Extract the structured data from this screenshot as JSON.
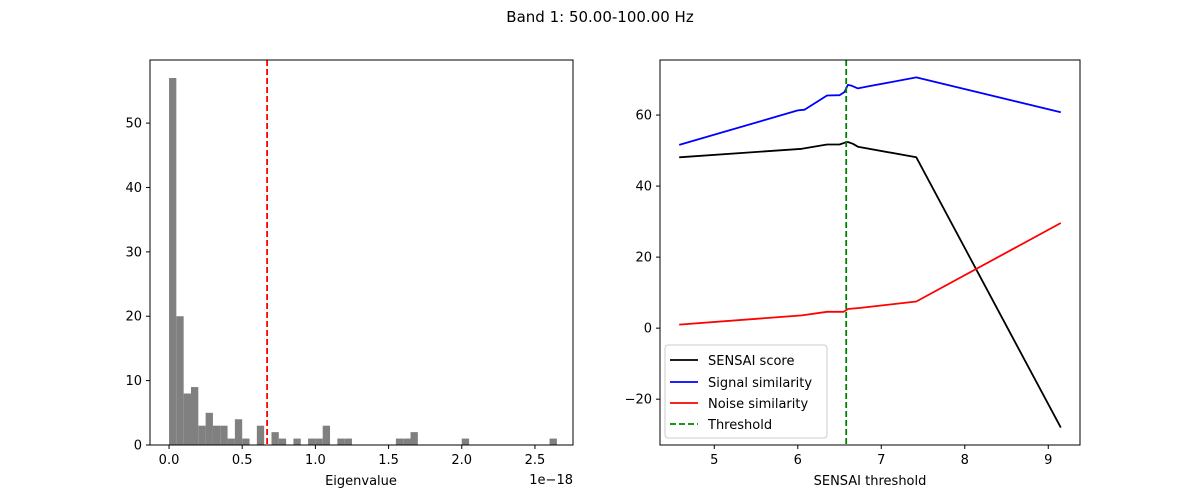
{
  "title": "Band 1: 50.00-100.00 Hz",
  "chart_data": [
    {
      "type": "bar",
      "subtype": "histogram",
      "xlabel": "Eigenvalue",
      "ylabel": "",
      "x_offset_label": "1e−18",
      "xlim": [
        -0.13,
        2.76
      ],
      "ylim": [
        0,
        59.8
      ],
      "xticks": [
        0.0,
        0.5,
        1.0,
        1.5,
        2.0,
        2.5
      ],
      "xtick_labels": [
        "0.0",
        "0.5",
        "1.0",
        "1.5",
        "2.0",
        "2.5"
      ],
      "yticks": [
        0,
        10,
        20,
        30,
        40,
        50
      ],
      "ytick_labels": [
        "0",
        "10",
        "20",
        "30",
        "40",
        "50"
      ],
      "bar_color": "#808080",
      "bins": {
        "edges": [
          0.0,
          0.05,
          0.1,
          0.15,
          0.2,
          0.25,
          0.3,
          0.35,
          0.4,
          0.45,
          0.5,
          0.55,
          0.6,
          0.65,
          0.7,
          0.75,
          0.8,
          0.85,
          0.9,
          0.95,
          1.0,
          1.05,
          1.1,
          1.15,
          1.2,
          1.25,
          1.3,
          1.35,
          1.4,
          1.45,
          1.5,
          1.55,
          1.6,
          1.65,
          1.7,
          1.75,
          1.8,
          1.85,
          1.9,
          1.95,
          2.0,
          2.05,
          2.1,
          2.15,
          2.2,
          2.25,
          2.3,
          2.35,
          2.4,
          2.45,
          2.5,
          2.55,
          2.6,
          2.65
        ],
        "counts": [
          57,
          20,
          8,
          9,
          3,
          5,
          3,
          3,
          1,
          4,
          1,
          0,
          3,
          0,
          2,
          1,
          0,
          1,
          0,
          1,
          1,
          3,
          0,
          1,
          1,
          0,
          0,
          0,
          0,
          0,
          0,
          1,
          1,
          2,
          0,
          0,
          0,
          0,
          0,
          0,
          1,
          0,
          0,
          0,
          0,
          0,
          0,
          0,
          0,
          0,
          0,
          0,
          1
        ]
      },
      "threshold": {
        "x": 0.67,
        "color": "#ff0000",
        "style": "dashed"
      },
      "grid": false
    },
    {
      "type": "line",
      "xlabel": "SENSAI threshold",
      "ylabel": "",
      "xlim": [
        4.35,
        9.38
      ],
      "ylim": [
        -32.9,
        75.5
      ],
      "xticks": [
        5,
        6,
        7,
        8,
        9
      ],
      "xtick_labels": [
        "5",
        "6",
        "7",
        "8",
        "9"
      ],
      "yticks": [
        -20,
        0,
        20,
        40,
        60
      ],
      "ytick_labels": [
        "−20",
        "0",
        "20",
        "40",
        "60"
      ],
      "series": [
        {
          "name": "SENSAI score",
          "color": "#000000",
          "x": [
            4.58,
            6.05,
            6.35,
            6.5,
            6.56,
            6.6,
            6.66,
            6.72,
            7.42,
            9.15
          ],
          "y": [
            48.1,
            50.5,
            51.7,
            51.7,
            52.2,
            52.4,
            51.9,
            51.1,
            48.1,
            -28.0
          ]
        },
        {
          "name": "Signal similarity",
          "color": "#0000ff",
          "x": [
            4.58,
            6.0,
            6.08,
            6.35,
            6.5,
            6.56,
            6.6,
            6.64,
            6.72,
            6.85,
            7.42,
            9.15
          ],
          "y": [
            51.6,
            61.3,
            61.5,
            65.5,
            65.6,
            66.5,
            68.5,
            68.3,
            67.5,
            68.1,
            70.6,
            60.8
          ]
        },
        {
          "name": "Noise similarity",
          "color": "#ff0000",
          "x": [
            4.58,
            6.05,
            6.35,
            6.55,
            6.6,
            6.75,
            7.42,
            9.15
          ],
          "y": [
            1.0,
            3.6,
            4.6,
            4.6,
            5.4,
            5.7,
            7.5,
            29.6
          ]
        }
      ],
      "threshold": {
        "name": "Threshold",
        "x": 6.58,
        "color": "#008000",
        "style": "dashed"
      },
      "legend": "lower-left",
      "grid": false
    }
  ]
}
